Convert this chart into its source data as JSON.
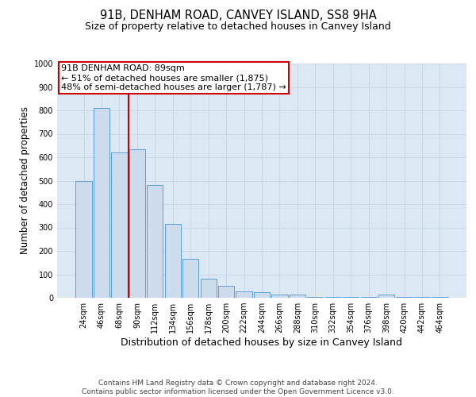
{
  "title": "91B, DENHAM ROAD, CANVEY ISLAND, SS8 9HA",
  "subtitle": "Size of property relative to detached houses in Canvey Island",
  "xlabel": "Distribution of detached houses by size in Canvey Island",
  "ylabel": "Number of detached properties",
  "footer_line1": "Contains HM Land Registry data © Crown copyright and database right 2024.",
  "footer_line2": "Contains public sector information licensed under the Open Government Licence v3.0.",
  "categories": [
    "24sqm",
    "46sqm",
    "68sqm",
    "90sqm",
    "112sqm",
    "134sqm",
    "156sqm",
    "178sqm",
    "200sqm",
    "222sqm",
    "244sqm",
    "266sqm",
    "288sqm",
    "310sqm",
    "332sqm",
    "354sqm",
    "376sqm",
    "398sqm",
    "420sqm",
    "442sqm",
    "464sqm"
  ],
  "values": [
    500,
    810,
    620,
    635,
    480,
    315,
    165,
    82,
    50,
    28,
    24,
    15,
    12,
    5,
    3,
    2,
    2,
    12,
    2,
    2,
    2
  ],
  "bar_color": "#cddcec",
  "bar_edge_color": "#5a9fd4",
  "bar_edge_width": 0.7,
  "annotation_text_line1": "91B DENHAM ROAD: 89sqm",
  "annotation_text_line2": "← 51% of detached houses are smaller (1,875)",
  "annotation_text_line3": "48% of semi-detached houses are larger (1,787) →",
  "annotation_box_edgecolor": "#cc0000",
  "annotation_box_facecolor": "#ffffff",
  "annotation_fontsize": 8.0,
  "vline_x": 2.5,
  "vline_color": "#cc0000",
  "ylim": [
    0,
    1000
  ],
  "yticks": [
    0,
    100,
    200,
    300,
    400,
    500,
    600,
    700,
    800,
    900,
    1000
  ],
  "grid_color": "#c8d8e8",
  "bg_color": "#dce8f4",
  "title_fontsize": 10.5,
  "subtitle_fontsize": 9.0,
  "xlabel_fontsize": 9.0,
  "ylabel_fontsize": 8.5,
  "tick_fontsize": 7.0,
  "footer_fontsize": 6.5
}
